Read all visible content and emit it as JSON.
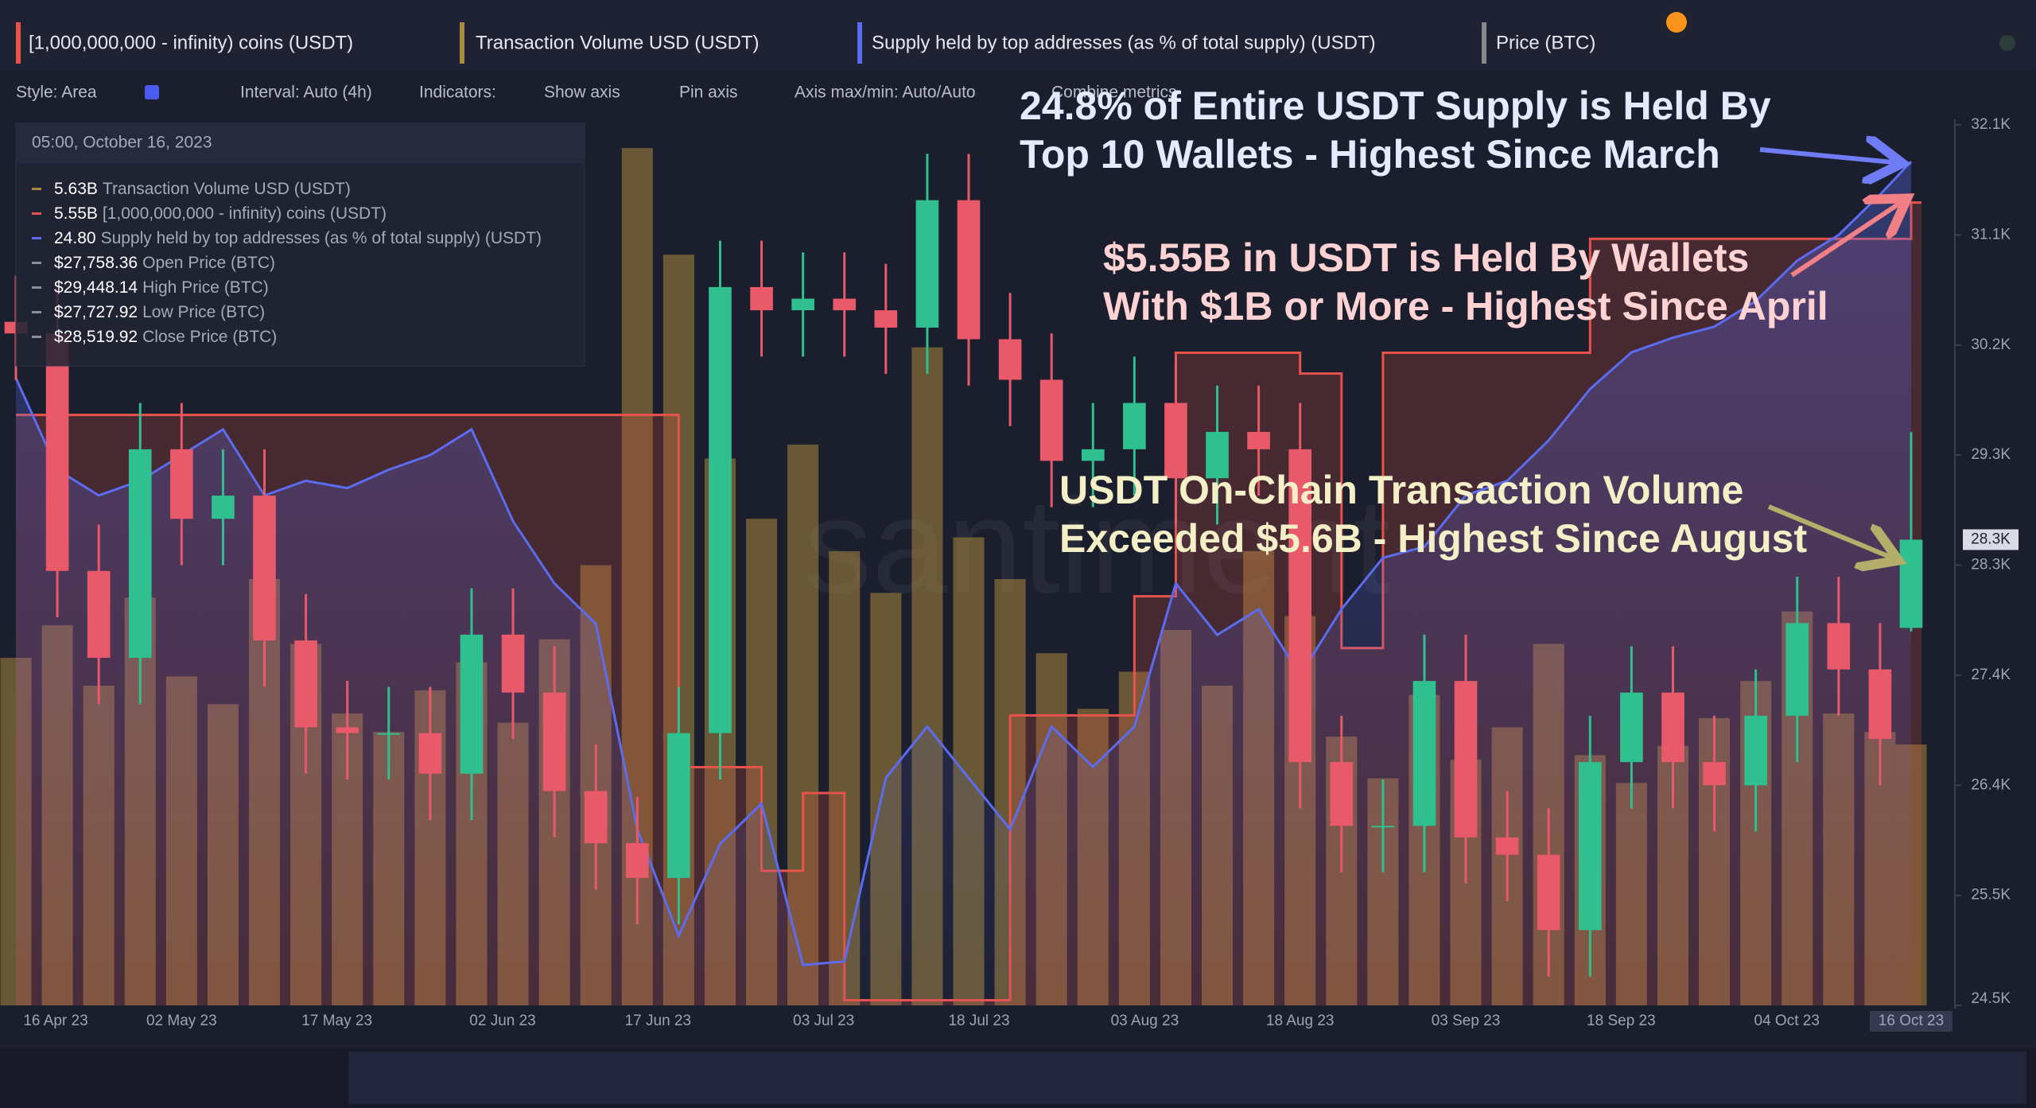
{
  "tabs": [
    "[1,000,000,000 - infinity) coins (USDT)",
    "Transaction Volume USD (USDT)",
    "Supply held by top addresses (as % of total supply) (USDT)",
    "Price (BTC)"
  ],
  "toolbar": [
    "Style: Area",
    "Interval: Auto (4h)",
    "Indicators:",
    "Show axis",
    "Pin axis",
    "Axis max/min: Auto/Auto",
    "Combine metrics"
  ],
  "legend": {
    "time": "05:00, October 16, 2023",
    "rows": [
      {
        "value": "5.63B",
        "name": "Transaction Volume USD (USDT)"
      },
      {
        "value": "5.55B",
        "name": "[1,000,000,000 - infinity) coins (USDT)"
      },
      {
        "value": "24.80",
        "name": "Supply held by top addresses (as % of total supply) (USDT)"
      },
      {
        "value": "$27,758.36",
        "name": "Open Price (BTC)"
      },
      {
        "value": "$29,448.14",
        "name": "High Price (BTC)"
      },
      {
        "value": "$27,727.92",
        "name": "Low Price (BTC)"
      },
      {
        "value": "$28,519.92",
        "name": "Close Price (BTC)"
      }
    ]
  },
  "chart_data": {
    "type": "candlestick",
    "watermark": "santiment",
    "annotations": [
      {
        "lines": [
          "24.8% of Entire USDT Supply is Held By",
          "Top 10 Wallets - Highest Since March"
        ],
        "color": "#e4ebff"
      },
      {
        "lines": [
          "$5.55B in USDT is Held By Wallets",
          "With $1B or More - Highest Since April"
        ],
        "color": "#ffd3d3"
      },
      {
        "lines": [
          "USDT On-Chain Transaction Volume",
          "Exceeded $5.6B - Highest Since August"
        ],
        "color": "#f4efc6"
      }
    ],
    "x": [
      "2023-04-16",
      "2023-04-20",
      "2023-04-24",
      "2023-04-28",
      "2023-05-02",
      "2023-05-06",
      "2023-05-10",
      "2023-05-14",
      "2023-05-18",
      "2023-05-22",
      "2023-05-26",
      "2023-05-30",
      "2023-06-03",
      "2023-06-07",
      "2023-06-11",
      "2023-06-15",
      "2023-06-19",
      "2023-06-23",
      "2023-06-27",
      "2023-07-01",
      "2023-07-05",
      "2023-07-09",
      "2023-07-13",
      "2023-07-17",
      "2023-07-21",
      "2023-07-25",
      "2023-07-29",
      "2023-08-02",
      "2023-08-06",
      "2023-08-10",
      "2023-08-14",
      "2023-08-18",
      "2023-08-22",
      "2023-08-26",
      "2023-08-30",
      "2023-09-03",
      "2023-09-07",
      "2023-09-11",
      "2023-09-15",
      "2023-09-19",
      "2023-09-23",
      "2023-09-27",
      "2023-10-01",
      "2023-10-05",
      "2023-10-09",
      "2023-10-13",
      "2023-10-16"
    ],
    "xlim": [
      "2023-04-16",
      "2023-10-17"
    ],
    "xticks": [
      {
        "value": "2023-04-16",
        "label": "16 Apr 23"
      },
      {
        "value": "2023-05-02",
        "label": "02 May 23"
      },
      {
        "value": "2023-05-17",
        "label": "17 May 23"
      },
      {
        "value": "2023-06-02",
        "label": "02 Jun 23"
      },
      {
        "value": "2023-06-17",
        "label": "17 Jun 23"
      },
      {
        "value": "2023-07-03",
        "label": "03 Jul 23"
      },
      {
        "value": "2023-07-18",
        "label": "18 Jul 23"
      },
      {
        "value": "2023-08-03",
        "label": "03 Aug 23"
      },
      {
        "value": "2023-08-18",
        "label": "18 Aug 23"
      },
      {
        "value": "2023-09-03",
        "label": "03 Sep 23"
      },
      {
        "value": "2023-09-18",
        "label": "18 Sep 23"
      },
      {
        "value": "2023-10-04",
        "label": "04 Oct 23"
      }
    ],
    "cursor": {
      "value": "2023-10-16",
      "label": "16 Oct 23"
    },
    "ylim": [
      24500,
      32100
    ],
    "yticks": [
      {
        "value": 24500,
        "label": "24.5K"
      },
      {
        "value": 25450,
        "label": "25.5K"
      },
      {
        "value": 26400,
        "label": "26.4K"
      },
      {
        "value": 27350,
        "label": "27.4K"
      },
      {
        "value": 28300,
        "label": "28.3K"
      },
      {
        "value": 29250,
        "label": "29.3K"
      },
      {
        "value": 30200,
        "label": "30.2K"
      },
      {
        "value": 31150,
        "label": "31.1K"
      },
      {
        "value": 32100,
        "label": "32.1K"
      }
    ],
    "price_marker": {
      "label": "28.3K"
    },
    "up_color": "#30bf8e",
    "down_color": "#e8596a",
    "open": [
      30400,
      30300,
      28250,
      27500,
      29300,
      28700,
      28900,
      27650,
      26900,
      26850,
      26850,
      26500,
      27700,
      27200,
      26350,
      25900,
      25600,
      26850,
      30700,
      30500,
      30600,
      30500,
      30350,
      31450,
      30250,
      29900,
      29200,
      29300,
      29700,
      29050,
      29450,
      29300,
      26600,
      26050,
      26050,
      27300,
      25950,
      25800,
      25150,
      26600,
      27200,
      26600,
      26400,
      27000,
      27800,
      27400,
      27758.36
    ],
    "high": [
      30800,
      30700,
      28650,
      29700,
      29700,
      29300,
      29300,
      28050,
      27300,
      27250,
      27250,
      28100,
      28100,
      27600,
      26750,
      26300,
      27250,
      31100,
      31100,
      31000,
      31000,
      30900,
      31850,
      31850,
      30650,
      30300,
      29700,
      30100,
      30100,
      29850,
      29850,
      29700,
      27000,
      26450,
      27700,
      27700,
      26350,
      26200,
      27000,
      27600,
      27600,
      27000,
      27400,
      28200,
      28200,
      27800,
      29448.14
    ],
    "low": [
      29900,
      27850,
      27100,
      27100,
      28300,
      28300,
      27250,
      26500,
      26450,
      26450,
      26100,
      26100,
      26800,
      25950,
      25500,
      25200,
      25200,
      26450,
      30100,
      30100,
      30100,
      29950,
      29950,
      29850,
      29500,
      28800,
      28800,
      28900,
      28650,
      28650,
      28900,
      26200,
      25650,
      25650,
      25650,
      25550,
      25400,
      24750,
      24750,
      26200,
      26200,
      26000,
      26000,
      26600,
      27000,
      26400,
      27727.92
    ],
    "close": [
      30300,
      28250,
      27500,
      29300,
      28700,
      28900,
      27650,
      26900,
      26850,
      26850,
      26500,
      27700,
      27200,
      26350,
      25900,
      25600,
      26850,
      30700,
      30500,
      30600,
      30500,
      30350,
      31450,
      30250,
      29900,
      29200,
      29300,
      29700,
      29050,
      29450,
      29300,
      26600,
      26050,
      26050,
      27300,
      25950,
      25800,
      25150,
      26600,
      27200,
      26600,
      26400,
      27000,
      27800,
      27400,
      26800,
      28519.92
    ],
    "y2lim": [
      0,
      19
    ],
    "y3lim": [
      4.0,
      5.7
    ],
    "y4lim": [
      22.5,
      24.9
    ],
    "series": [
      {
        "name": "Transaction Volume USD (USDT)",
        "type": "bar",
        "axis": "y2",
        "color": "#a8893f",
        "values": [
          7.5,
          8.2,
          6.9,
          8.8,
          7.1,
          6.5,
          9.2,
          7.8,
          6.3,
          5.9,
          6.8,
          7.4,
          6.1,
          7.9,
          9.5,
          18.5,
          16.2,
          11.8,
          10.5,
          12.1,
          9.8,
          8.9,
          14.2,
          10.1,
          9.2,
          7.6,
          6.4,
          7.2,
          8.1,
          6.9,
          9.8,
          8.4,
          5.8,
          4.9,
          6.7,
          5.3,
          6.0,
          7.8,
          5.4,
          4.8,
          5.6,
          6.2,
          7.0,
          8.5,
          6.3,
          5.9,
          5.63
        ]
      },
      {
        "name": "[1,000,000,000 - infinity) coins (USDT)",
        "type": "step-area",
        "axis": "y3",
        "color": "#e5534b",
        "values": [
          5.14,
          5.14,
          5.14,
          5.14,
          5.14,
          5.14,
          5.14,
          5.14,
          5.14,
          5.14,
          5.14,
          5.14,
          5.14,
          5.14,
          5.14,
          5.14,
          4.46,
          4.46,
          4.26,
          4.41,
          4.01,
          4.01,
          4.01,
          4.01,
          4.56,
          4.56,
          4.56,
          4.79,
          5.26,
          5.26,
          5.26,
          5.22,
          4.69,
          5.26,
          5.26,
          5.26,
          5.26,
          5.26,
          5.48,
          5.48,
          5.48,
          5.48,
          5.48,
          5.48,
          5.48,
          5.48,
          5.55
        ]
      },
      {
        "name": "Supply held by top addresses (as % of total supply) (USDT)",
        "type": "area",
        "axis": "y4",
        "color": "#5c6cf0",
        "values": [
          24.21,
          23.96,
          23.89,
          23.93,
          24.0,
          24.07,
          23.89,
          23.93,
          23.91,
          23.96,
          24.0,
          24.07,
          23.82,
          23.65,
          23.54,
          22.98,
          22.69,
          22.94,
          23.05,
          22.61,
          22.62,
          23.12,
          23.26,
          23.12,
          22.98,
          23.26,
          23.15,
          23.26,
          23.65,
          23.51,
          23.58,
          23.4,
          23.58,
          23.72,
          23.75,
          23.89,
          23.93,
          24.04,
          24.18,
          24.28,
          24.32,
          24.35,
          24.42,
          24.53,
          24.6,
          24.71,
          24.8
        ]
      }
    ]
  }
}
